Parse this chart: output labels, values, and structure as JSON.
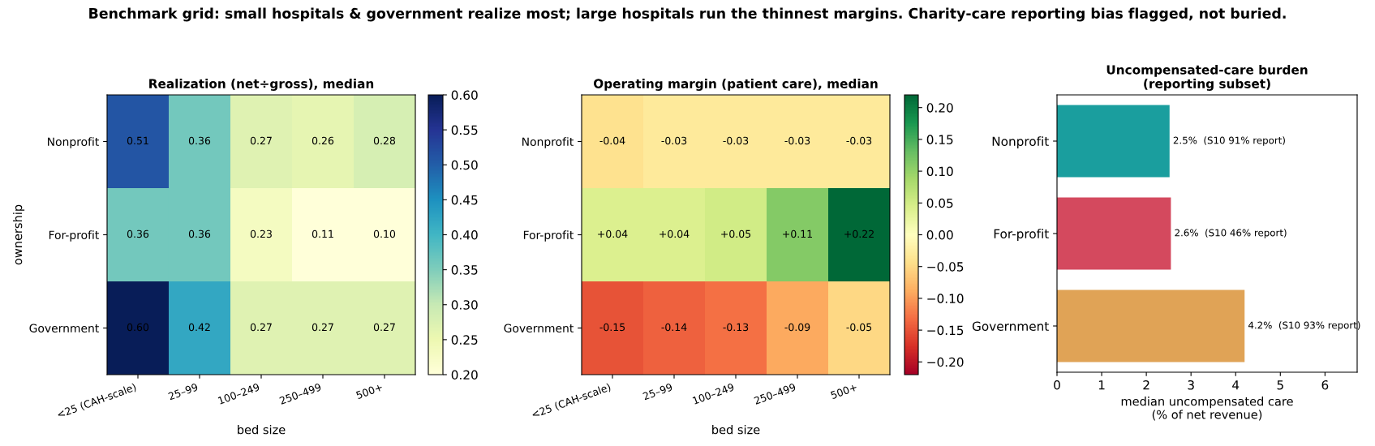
{
  "chart_data": [
    {
      "type": "heatmap",
      "annotations": [
        "Benchmark grid: small hospitals & government realize most; large hospitals run the thinnest margins. Charity-care reporting bias flagged, not buried."
      ],
      "title": "Realization (net÷gross), median",
      "xlabel": "bed size",
      "ylabel": "ownership",
      "categories": [
        "<25 (CAH-scale)",
        "25–99",
        "100–249",
        "250–499",
        "500+"
      ],
      "y_categories": [
        "Nonprofit",
        "For-profit",
        "Government"
      ],
      "cells": [
        [
          0.51,
          0.36,
          0.27,
          0.26,
          0.28
        ],
        [
          0.36,
          0.36,
          0.23,
          0.11,
          0.1
        ],
        [
          0.6,
          0.42,
          0.27,
          0.27,
          0.27
        ]
      ],
      "cell_labels": [
        [
          "0.51",
          "0.36",
          "0.27",
          "0.26",
          "0.28"
        ],
        [
          "0.36",
          "0.36",
          "0.23",
          "0.11",
          "0.10"
        ],
        [
          "0.60",
          "0.42",
          "0.27",
          "0.27",
          "0.27"
        ]
      ],
      "clim": [
        0.2,
        0.6
      ],
      "cticks": [
        {
          "value": 0.2,
          "label": "0.20"
        },
        {
          "value": 0.25,
          "label": "0.25"
        },
        {
          "value": 0.3,
          "label": "0.30"
        },
        {
          "value": 0.35,
          "label": "0.35"
        },
        {
          "value": 0.4,
          "label": "0.40"
        },
        {
          "value": 0.45,
          "label": "0.45"
        },
        {
          "value": 0.5,
          "label": "0.50"
        },
        {
          "value": 0.55,
          "label": "0.55"
        },
        {
          "value": 0.6,
          "label": "0.60"
        }
      ]
    },
    {
      "type": "heatmap",
      "title": "Operating margin (patient care), median",
      "xlabel": "bed size",
      "categories": [
        "<25 (CAH-scale)",
        "25–99",
        "100–249",
        "250–499",
        "500+"
      ],
      "y_categories": [
        "Nonprofit",
        "For-profit",
        "Government"
      ],
      "cells": [
        [
          -0.04,
          -0.03,
          -0.03,
          -0.03,
          -0.03
        ],
        [
          0.04,
          0.04,
          0.05,
          0.11,
          0.22
        ],
        [
          -0.15,
          -0.14,
          -0.13,
          -0.09,
          -0.05
        ]
      ],
      "cell_labels": [
        [
          "-0.04",
          "-0.03",
          "-0.03",
          "-0.03",
          "-0.03"
        ],
        [
          "+0.04",
          "+0.04",
          "+0.05",
          "+0.11",
          "+0.22"
        ],
        [
          "-0.15",
          "-0.14",
          "-0.13",
          "-0.09",
          "-0.05"
        ]
      ],
      "clim": [
        -0.22,
        0.22
      ],
      "cticks": [
        {
          "value": -0.2,
          "label": "−0.20"
        },
        {
          "value": -0.15,
          "label": "−0.15"
        },
        {
          "value": -0.1,
          "label": "−0.10"
        },
        {
          "value": -0.05,
          "label": "−0.05"
        },
        {
          "value": 0,
          "label": "0.00"
        },
        {
          "value": 0.05,
          "label": "0.05"
        },
        {
          "value": 0.1,
          "label": "0.10"
        },
        {
          "value": 0.15,
          "label": "0.15"
        },
        {
          "value": 0.2,
          "label": "0.20"
        }
      ]
    },
    {
      "type": "bar",
      "orientation": "horizontal",
      "title": "Uncompensated-care burden\n(reporting subset)",
      "xlabel": "median uncompensated care\n(% of net revenue)",
      "categories": [
        "Nonprofit",
        "For-profit",
        "Government"
      ],
      "values": [
        2.52,
        2.55,
        4.2
      ],
      "colors": [
        "#1a9e9e",
        "#d4495e",
        "#e0a356"
      ],
      "value_labels": [
        "2.5%  (S10 91% report)",
        "2.6%  (S10 46% report)",
        "4.2%  (S10 93% report)"
      ],
      "xlim": [
        0,
        6.72
      ],
      "xticks": [
        0,
        1,
        2,
        3,
        4,
        5,
        6
      ]
    }
  ]
}
